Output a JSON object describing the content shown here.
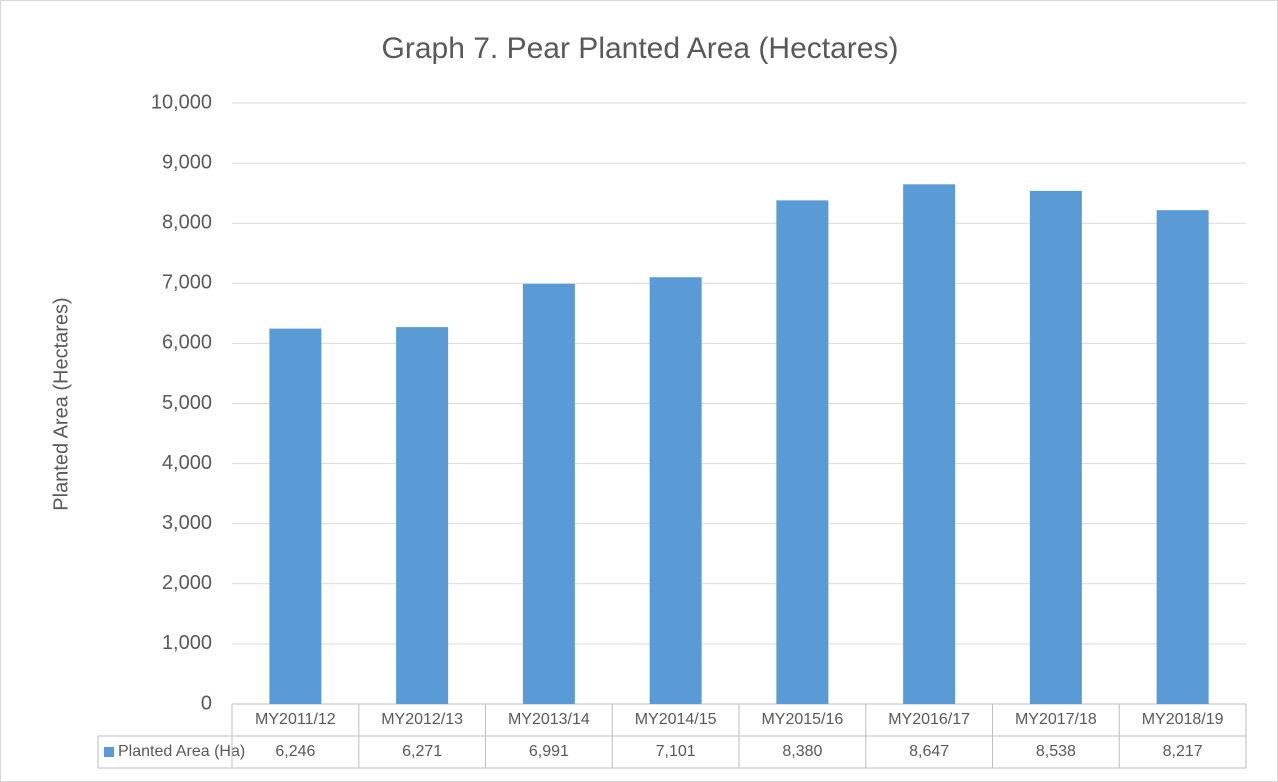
{
  "chart_data": {
    "type": "bar",
    "title": "Graph 7. Pear Planted Area (Hectares)",
    "y_label": "Planted Area  (Hectares)",
    "categories": [
      "MY2011/12",
      "MY2012/13",
      "MY2013/14",
      "MY2014/15",
      "MY2015/16",
      "MY2016/17",
      "MY2017/18",
      "MY2018/19"
    ],
    "series": [
      {
        "name": "Planted Area (Ha)",
        "color": "#5b9bd5",
        "values": [
          6246,
          6271,
          6991,
          7101,
          8380,
          8647,
          8538,
          8217
        ],
        "value_labels": [
          "6,246",
          "6,271",
          "6,991",
          "7,101",
          "8,380",
          "8,647",
          "8,538",
          "8,217"
        ]
      }
    ],
    "ylim": [
      0,
      10000
    ],
    "yticks": [
      0,
      {
        "value": 1000,
        "label": "1,000"
      },
      {
        "value": 2000,
        "label": "2,000"
      },
      {
        "value": 3000,
        "label": "3,000"
      },
      {
        "value": 4000,
        "label": "4,000"
      },
      {
        "value": 5000,
        "label": "5,000"
      },
      {
        "value": 6000,
        "label": "6,000"
      },
      {
        "value": 7000,
        "label": "7,000"
      },
      {
        "value": 8000,
        "label": "8,000"
      },
      {
        "value": 9000,
        "label": "9,000"
      },
      {
        "value": 10000,
        "label": "10,000"
      }
    ],
    "grid": true
  }
}
